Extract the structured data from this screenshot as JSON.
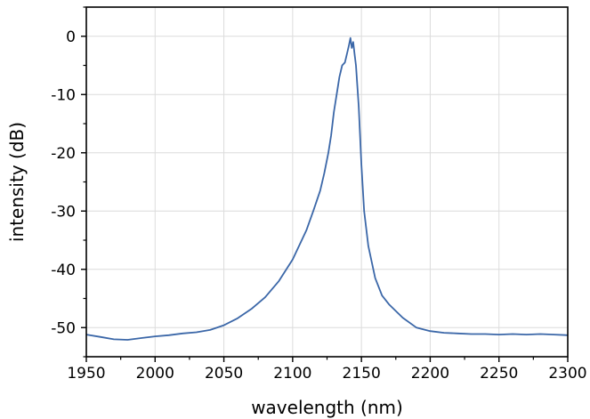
{
  "chart_data": {
    "type": "line",
    "title": "",
    "xlabel": "wavelength (nm)",
    "ylabel": "intensity (dB)",
    "xlim": [
      1950,
      2300
    ],
    "ylim": [
      -55,
      5
    ],
    "xticks": [
      1950,
      2000,
      2050,
      2100,
      2150,
      2200,
      2250,
      2300
    ],
    "yticks": [
      0,
      -10,
      -20,
      -30,
      -40,
      -50
    ],
    "xtick_labels": [
      "1950",
      "2000",
      "2050",
      "2100",
      "2150",
      "2200",
      "2250",
      "2300"
    ],
    "ytick_labels": [
      "0",
      "-10",
      "-20",
      "-30",
      "-40",
      "-50"
    ],
    "grid": true,
    "line_color": "#3b67a8",
    "series": [
      {
        "x": [
          1950,
          1960,
          1970,
          1980,
          1990,
          2000,
          2010,
          2020,
          2030,
          2040,
          2050,
          2060,
          2070,
          2080,
          2090,
          2100,
          2105,
          2110,
          2115,
          2120,
          2123,
          2126,
          2128,
          2130,
          2132,
          2134,
          2136,
          2138,
          2140,
          2141,
          2142,
          2143,
          2144,
          2145,
          2146,
          2148,
          2150,
          2152,
          2155,
          2160,
          2165,
          2170,
          2180,
          2190,
          2200,
          2210,
          2220,
          2230,
          2240,
          2250,
          2260,
          2270,
          2280,
          2290,
          2300
        ],
        "y": [
          -51.2,
          -51.6,
          -52.0,
          -52.1,
          -51.8,
          -51.5,
          -51.3,
          -51.0,
          -50.8,
          -50.4,
          -49.6,
          -48.4,
          -46.8,
          -44.8,
          -42.0,
          -38.3,
          -35.8,
          -33.3,
          -30.0,
          -26.5,
          -23.5,
          -20.0,
          -17.0,
          -13.0,
          -10.0,
          -7.0,
          -5.0,
          -4.5,
          -2.5,
          -1.5,
          -0.3,
          -2.0,
          -1.0,
          -3.0,
          -5.0,
          -12.0,
          -22.0,
          -30.0,
          -36.0,
          -41.5,
          -44.5,
          -46.0,
          -48.3,
          -50.0,
          -50.6,
          -50.9,
          -51.0,
          -51.1,
          -51.1,
          -51.2,
          -51.1,
          -51.2,
          -51.1,
          -51.2,
          -51.3
        ]
      }
    ]
  }
}
